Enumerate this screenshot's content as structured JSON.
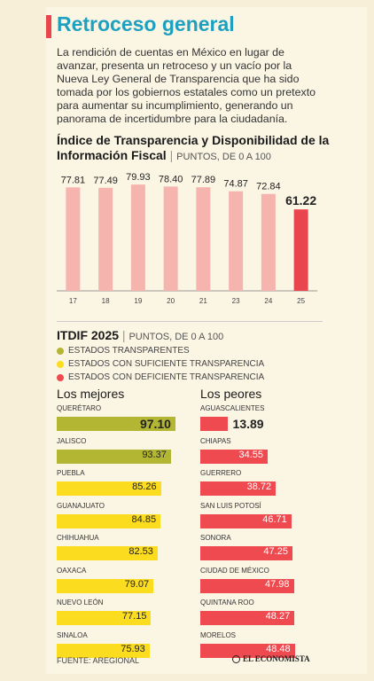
{
  "title": "Retroceso general",
  "intro": "La rendición de cuentas en México en lugar de avanzar, presenta un retroceso y un vacío por la Nueva Ley General de Transparencia que ha sido tomada por los gobiernos estatales como un pretexto para aumentar su incumplimiento, generando un panorama de incertidumbre para la ciudadanía.",
  "colors": {
    "accent_red": "#e8454f",
    "title_blue": "#1ea0c0",
    "bar_light": "#f5b5ae",
    "bar_strong": "#e8454f",
    "green": "#b3b632",
    "yellow": "#fcdc1e",
    "red": "#ef4a4f"
  },
  "chart_data": [
    {
      "type": "bar",
      "title": "Índice de Transparencia y Disponibilidad de la Información Fiscal",
      "subtitle": "PUNTOS, DE 0 A 100",
      "categories": [
        "17",
        "18",
        "19",
        "20",
        "21",
        "23",
        "24",
        "25"
      ],
      "values": [
        77.81,
        77.49,
        79.93,
        78.4,
        77.89,
        74.87,
        72.84,
        61.22
      ],
      "value_labels": [
        "77.81",
        "77.49",
        "79.93",
        "78.40",
        "77.89",
        "74.87",
        "72.84",
        "61.22"
      ],
      "highlight_index": 7,
      "ylim": [
        0,
        100
      ]
    },
    {
      "type": "bar",
      "title": "ITDIF 2025",
      "subtitle": "PUNTOS, DE 0 A 100",
      "legend": [
        {
          "label": "ESTADOS TRANSPARENTES",
          "color": "#b3b632"
        },
        {
          "label": "ESTADOS CON SUFICIENTE TRANSPARENCIA",
          "color": "#fcdc1e"
        },
        {
          "label": "ESTADOS CON DEFICIENTE TRANSPARENCIA",
          "color": "#ef4a4f"
        }
      ],
      "xlim": [
        0,
        100
      ],
      "best": {
        "heading": "Los mejores",
        "items": [
          {
            "name": "QUERÉTARO",
            "value": 97.1,
            "label": "97.10",
            "color": "#b3b632"
          },
          {
            "name": "JALISCO",
            "value": 93.37,
            "label": "93.37",
            "color": "#b3b632"
          },
          {
            "name": "PUEBLA",
            "value": 85.26,
            "label": "85.26",
            "color": "#fcdc1e"
          },
          {
            "name": "GUANAJUATO",
            "value": 84.85,
            "label": "84.85",
            "color": "#fcdc1e"
          },
          {
            "name": "CHIHUAHUA",
            "value": 82.53,
            "label": "82.53",
            "color": "#fcdc1e"
          },
          {
            "name": "OAXACA",
            "value": 79.07,
            "label": "79.07",
            "color": "#fcdc1e"
          },
          {
            "name": "NUEVO LEÓN",
            "value": 77.15,
            "label": "77.15",
            "color": "#fcdc1e"
          },
          {
            "name": "SINALOA",
            "value": 75.93,
            "label": "75.93",
            "color": "#fcdc1e"
          }
        ]
      },
      "worst": {
        "heading": "Los peores",
        "items": [
          {
            "name": "AGUASCALIENTES",
            "value": 13.89,
            "label": "13.89",
            "color": "#ef4a4f"
          },
          {
            "name": "CHIAPAS",
            "value": 34.55,
            "label": "34.55",
            "color": "#ef4a4f"
          },
          {
            "name": "GUERRERO",
            "value": 38.72,
            "label": "38.72",
            "color": "#ef4a4f"
          },
          {
            "name": "SAN LUIS POTOSÍ",
            "value": 46.71,
            "label": "46.71",
            "color": "#ef4a4f"
          },
          {
            "name": "SONORA",
            "value": 47.25,
            "label": "47.25",
            "color": "#ef4a4f"
          },
          {
            "name": "CIUDAD DE MÉXICO",
            "value": 47.98,
            "label": "47.98",
            "color": "#ef4a4f"
          },
          {
            "name": "QUINTANA ROO",
            "value": 48.27,
            "label": "48.27",
            "color": "#ef4a4f"
          },
          {
            "name": "MORELOS",
            "value": 48.48,
            "label": "48.48",
            "color": "#ef4a4f"
          }
        ]
      }
    }
  ],
  "source": "FUENTE: AREGIONAL",
  "logo": "EL ECONOMISTA"
}
